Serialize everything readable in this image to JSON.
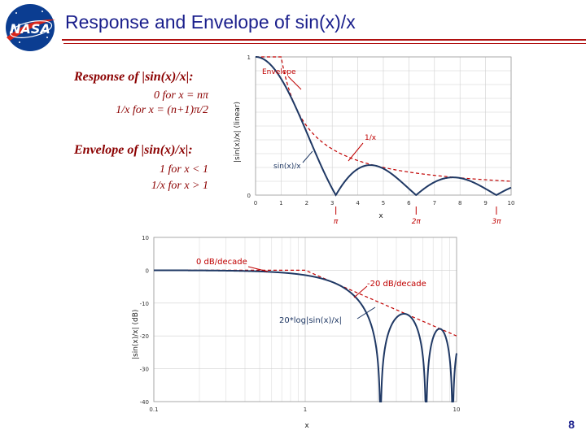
{
  "slide": {
    "title": "Response and Envelope of sin(x)/x",
    "page_number": "8",
    "logo_text": "NASA",
    "colors": {
      "title": "#1a1f8c",
      "accent": "#8b0000",
      "curve": "#1f3864",
      "envelope": "#c00000"
    }
  },
  "text_block": {
    "response_heading": "Response of |sin(x)/x|:",
    "response_line1": "0 for x = nπ",
    "response_line2": "1/x for x = (n+1)π/2",
    "envelope_heading": "Envelope of |sin(x)/x|:",
    "envelope_line1": "1 for x < 1",
    "envelope_line2": "1/x for x > 1"
  },
  "chart_data": [
    {
      "type": "line",
      "scale": "linear",
      "ylabel": "|sin(x)/x| (linear)",
      "xlabel": "x",
      "xlim": [
        0,
        10
      ],
      "ylim": [
        0,
        1
      ],
      "x_ticks": [
        "0",
        "1",
        "2",
        "3",
        "4",
        "5",
        "6",
        "7",
        "8",
        "9",
        "10"
      ],
      "y_ticks": [
        "0",
        "1"
      ],
      "grid": true,
      "series": [
        {
          "name": "sin(x)/x",
          "function": "|sin(x)/x|",
          "style": "solid"
        },
        {
          "name": "Envelope",
          "function": "min(1, 1/x)",
          "style": "dashed"
        }
      ],
      "annotations": [
        {
          "text": "Envelope",
          "color": "#c00000"
        },
        {
          "text": "1/x",
          "color": "#c00000"
        },
        {
          "text": "sin(x)/x",
          "color": "#1f3864"
        },
        {
          "text": "π",
          "x": 3.14159,
          "color": "#c00000"
        },
        {
          "text": "2π",
          "x": 6.28319,
          "color": "#c00000"
        },
        {
          "text": "3π",
          "x": 9.42478,
          "color": "#c00000"
        }
      ]
    },
    {
      "type": "line",
      "scale": "semilogx",
      "ylabel": "|sin(x)/x| (dB)",
      "xlabel": "x",
      "xlim": [
        0.1,
        10
      ],
      "ylim": [
        -40,
        10
      ],
      "x_ticks": [
        "0.1",
        "1",
        "10"
      ],
      "y_ticks": [
        "10",
        "0",
        "-10",
        "-20",
        "-30",
        "-40"
      ],
      "grid": true,
      "series": [
        {
          "name": "20*log|sin(x)/x|",
          "function": "20*log10(|sin(x)/x|)",
          "style": "solid"
        },
        {
          "name": "Envelope",
          "function": "min(0, -20*log10(x))",
          "style": "dashed"
        }
      ],
      "annotations": [
        {
          "text": "0 dB/decade",
          "color": "#c00000"
        },
        {
          "text": "-20 dB/decade",
          "color": "#c00000"
        },
        {
          "text": "20*log|sin(x)/x|",
          "color": "#1f3864"
        }
      ]
    }
  ]
}
